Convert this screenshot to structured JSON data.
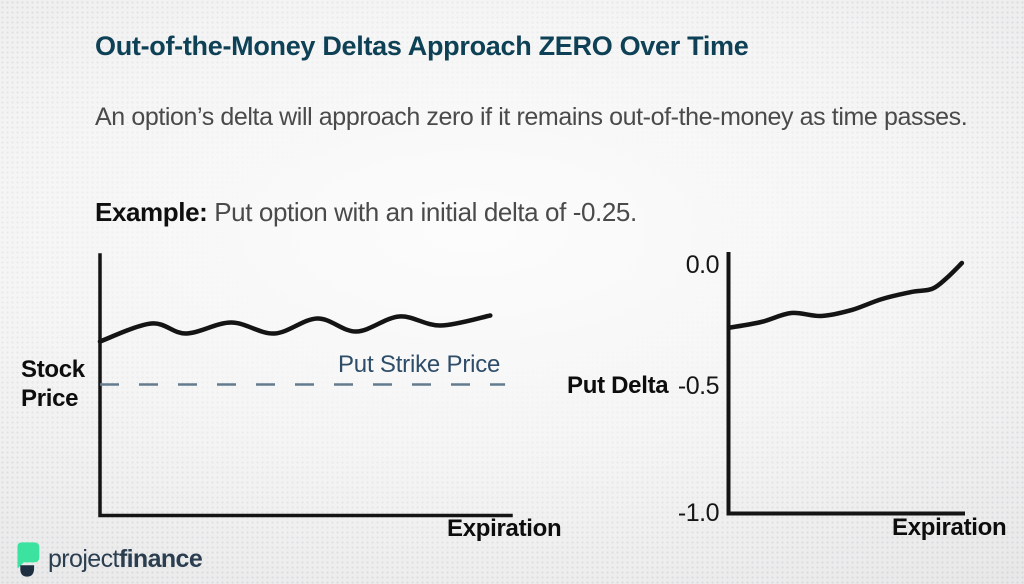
{
  "slide": {
    "title": "Out-of-the-Money Deltas Approach ZERO Over Time",
    "body": "An option’s delta will approach zero if it remains out-of-the-money as time passes.",
    "example_label": "Example:",
    "example_text": "Put option with an initial delta of -0.25."
  },
  "left_chart": {
    "ylabel": "Stock\nPrice",
    "xlabel": "Expiration",
    "strike_annotation": "Put Strike Price"
  },
  "right_chart": {
    "ylabel": "Put Delta",
    "xlabel": "Expiration",
    "yticks": [
      "0.0",
      "-0.5",
      "-1.0"
    ]
  },
  "logo": {
    "word_light": "project",
    "word_bold": "finance"
  },
  "colors": {
    "title_teal": "#0e4156",
    "body_gray": "#4a4a4a",
    "chart_black": "#141414",
    "strike_label_blue": "#2e4d68",
    "strike_dash_blue": "#647b8e",
    "logo_green": "#3ce2a0",
    "logo_navy": "#2b3e50",
    "bg_center": "#fcfcfc",
    "bg_edge": "#dfdfdf"
  },
  "chart_data": [
    {
      "type": "line",
      "title": "Stock price stays above put strike until expiration",
      "xlabel": "Expiration",
      "ylabel": "Stock Price",
      "xlim": [
        0,
        1
      ],
      "ylim": [
        87,
        113
      ],
      "grid": false,
      "series": [
        {
          "name": "Stock Price",
          "style": "solid",
          "x": [
            0.0,
            0.125,
            0.21,
            0.32,
            0.425,
            0.53,
            0.625,
            0.73,
            0.83,
            0.952
          ],
          "y": [
            104.3,
            106.1,
            105.1,
            106.2,
            105.1,
            106.6,
            105.3,
            106.8,
            105.9,
            106.9
          ]
        },
        {
          "name": "Put Strike Price",
          "style": "dashed",
          "x": [
            0.0,
            0.988
          ],
          "y": [
            100,
            100
          ]
        }
      ]
    },
    {
      "type": "line",
      "title": "Put delta approaches zero over time",
      "xlabel": "Expiration",
      "ylabel": "Put Delta",
      "xlim": [
        0,
        1
      ],
      "ylim": [
        -1.0,
        0.0
      ],
      "yticks": [
        0.0,
        -0.5,
        -1.0
      ],
      "grid": false,
      "series": [
        {
          "name": "Put Delta",
          "style": "solid",
          "x": [
            0.0,
            0.136,
            0.264,
            0.391,
            0.519,
            0.647,
            0.774,
            0.86,
            0.923,
            0.987
          ],
          "y": [
            -0.26,
            -0.237,
            -0.201,
            -0.213,
            -0.189,
            -0.145,
            -0.116,
            -0.104,
            -0.06,
            0.0
          ]
        }
      ]
    }
  ]
}
